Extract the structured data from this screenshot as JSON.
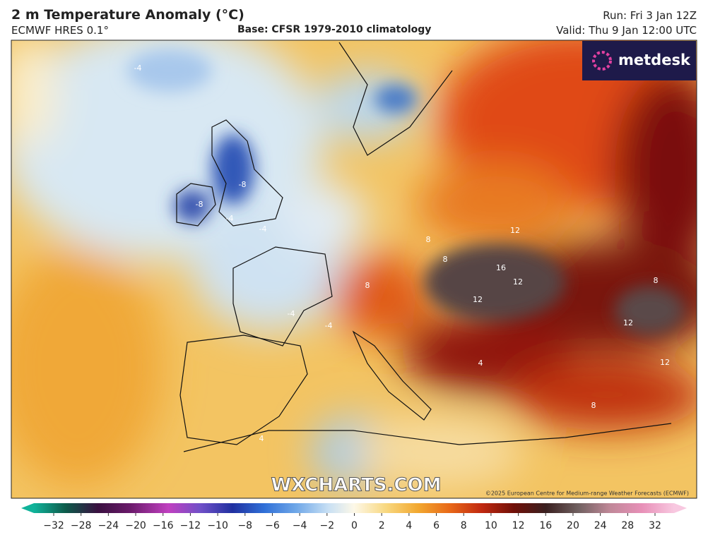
{
  "header": {
    "title": "2 m Temperature Anomaly (°C)",
    "model": "ECMWF HRES 0.1°",
    "base": "Base: CFSR 1979-2010 climatology",
    "run": "Run: Fri 3 Jan 12Z",
    "valid": "Valid: Thu 9 Jan 12:00 UTC"
  },
  "map": {
    "logo": "metdesk",
    "watermark": "WXCHARTS.COM",
    "credit": "©2025 European Centre for Medium-range Weather Forecasts (ECMWF)",
    "contour_labels": [
      "-4",
      "-4",
      "-8",
      "-8",
      "-4",
      "-4",
      "-4",
      "12",
      "16",
      "12",
      "12",
      "8",
      "8",
      "12",
      "8",
      "8",
      "12",
      "8",
      "4",
      "4"
    ]
  },
  "legend": {
    "ticks": [
      "−32",
      "−28",
      "−24",
      "−20",
      "−16",
      "−12",
      "−10",
      "−8",
      "−6",
      "−4",
      "−2",
      "0",
      "2",
      "4",
      "6",
      "8",
      "10",
      "12",
      "16",
      "20",
      "24",
      "28",
      "32"
    ]
  }
}
